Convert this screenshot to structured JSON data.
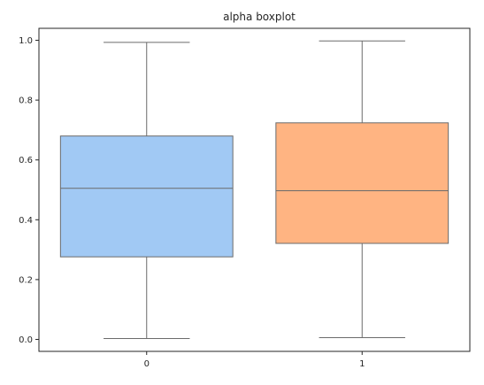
{
  "chart_data": {
    "type": "boxplot",
    "title": "alpha boxplot",
    "xlabel": "",
    "ylabel": "",
    "categories": [
      "0",
      "1"
    ],
    "boxes": [
      {
        "category": "0",
        "whisker_low": 0.003,
        "q1": 0.276,
        "median": 0.505,
        "q3": 0.68,
        "whisker_high": 0.993,
        "color": "#a1c9f4"
      },
      {
        "category": "1",
        "whisker_low": 0.006,
        "q1": 0.321,
        "median": 0.497,
        "q3": 0.724,
        "whisker_high": 0.998,
        "color": "#ffb482"
      }
    ],
    "ylim": [
      -0.04,
      1.04
    ],
    "yticks": [
      "0.0",
      "0.2",
      "0.4",
      "0.6",
      "0.8",
      "1.0"
    ],
    "grid": false,
    "legend": "none"
  },
  "colors": {
    "line": "#6b6b6b",
    "axis": "#262626"
  }
}
